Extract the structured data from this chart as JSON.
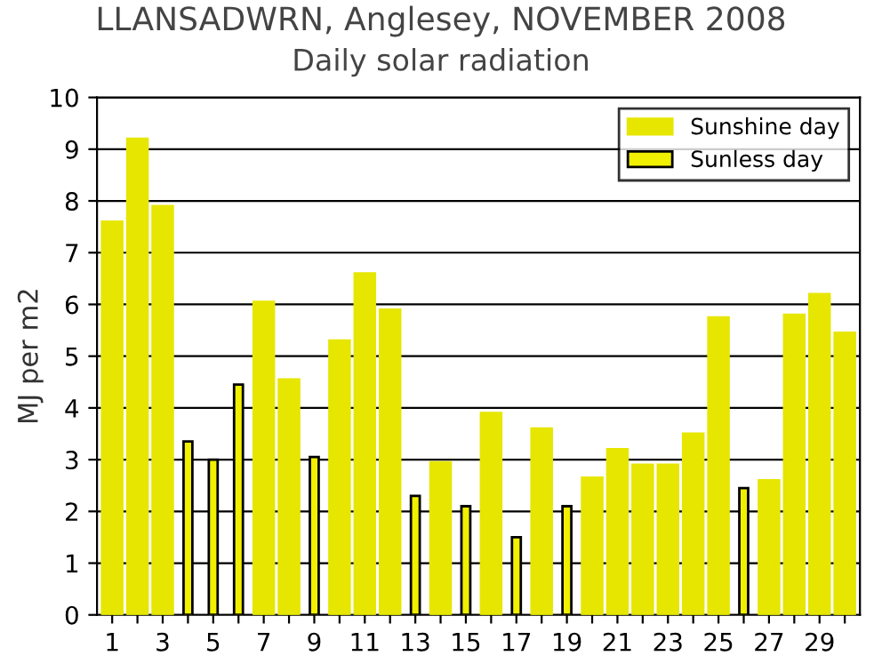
{
  "chart_data": {
    "type": "bar",
    "title": "LLANSADWRN, Anglesey, NOVEMBER 2008",
    "subtitle": "Daily solar radiation",
    "ylabel": "MJ per m2",
    "categories": [
      "1",
      null,
      "3",
      null,
      "5",
      null,
      "7",
      null,
      "9",
      null,
      "11",
      null,
      "13",
      null,
      "15",
      null,
      "17",
      null,
      "19",
      null,
      "21",
      null,
      "23",
      null,
      "25",
      null,
      "27",
      null,
      "29",
      null
    ],
    "series": [
      {
        "name": "Sunshine day",
        "color": "#e6e600",
        "values": [
          7.6,
          9.2,
          7.9,
          null,
          null,
          null,
          6.05,
          4.55,
          null,
          5.3,
          6.6,
          5.9,
          null,
          2.95,
          null,
          3.9,
          null,
          3.6,
          null,
          2.65,
          3.2,
          2.9,
          2.9,
          3.5,
          5.75,
          null,
          2.6,
          5.8,
          6.2,
          5.45
        ]
      },
      {
        "name": "Sunless day",
        "color": "#f0f000",
        "values": [
          null,
          null,
          null,
          3.35,
          3.0,
          4.45,
          null,
          null,
          3.05,
          null,
          null,
          null,
          2.3,
          null,
          2.1,
          null,
          1.5,
          null,
          2.1,
          null,
          null,
          null,
          null,
          null,
          null,
          2.45,
          null,
          null,
          null,
          null
        ]
      }
    ],
    "ylim": [
      0,
      10
    ],
    "yticks": [
      0,
      1,
      2,
      3,
      4,
      5,
      6,
      7,
      8,
      9,
      10
    ],
    "grid": "y",
    "legend": "top right"
  }
}
